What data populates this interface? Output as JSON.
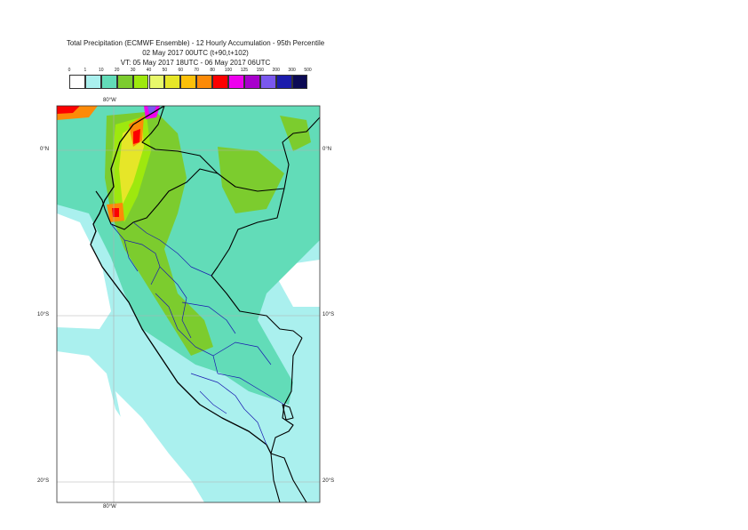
{
  "title": {
    "line1": "Total Precipitation (ECMWF Ensemble) - 12 Hourly Accumulation - 95th Percentile",
    "line2": "02 May 2017 00UTC (t+90,t+102)",
    "line3": "VT: 05 May 2017 18UTC - 06 May 2017 06UTC"
  },
  "colorbar": {
    "labels": [
      "0",
      "1",
      "10",
      "20",
      "30",
      "40",
      "50",
      "60",
      "70",
      "80",
      "100",
      "125",
      "150",
      "200",
      "300",
      "500"
    ],
    "colors": [
      "#ffffff",
      "#aaf0ee",
      "#62dcb8",
      "#7ccc2e",
      "#9ee80e",
      "#e8f86a",
      "#e6e628",
      "#fcc00a",
      "#fc8a08",
      "#fc0000",
      "#ee00ee",
      "#a800cc",
      "#7a58ee",
      "#1c1cac",
      "#0c0a54"
    ]
  },
  "axes": {
    "lon_top": "80°W",
    "lon_bottom": "80°W",
    "lat_0_left": "0°N",
    "lat_0_right": "0°N",
    "lat_10_left": "10°S",
    "lat_10_right": "10°S",
    "lat_20_left": "20°S",
    "lat_20_right": "20°S"
  }
}
